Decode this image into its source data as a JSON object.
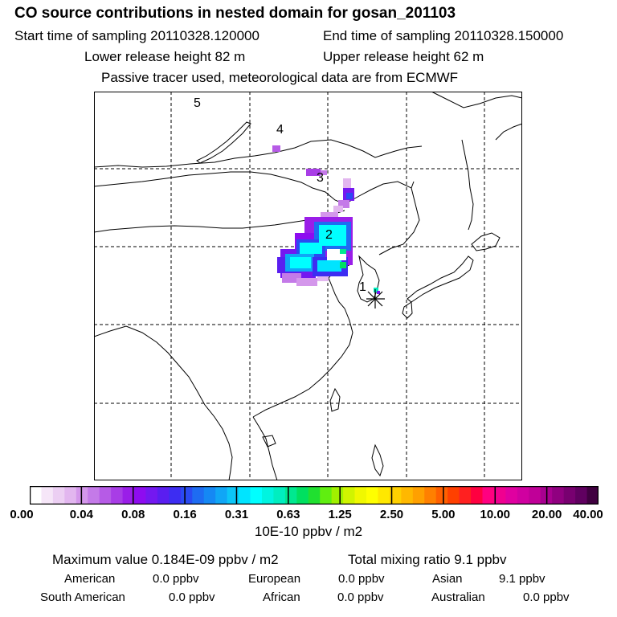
{
  "header": {
    "title": "CO  source contributions in nested domain for gosan_201103",
    "start_label": "Start time of sampling 20110328.120000",
    "end_label": "End time of sampling 20110328.150000",
    "lower_label": "Lower release height   82 m",
    "upper_label": "Upper release height   62 m",
    "tracer_label": "Passive tracer used, meteorological data are from ECMWF"
  },
  "chart_data": {
    "type": "heatmap",
    "title": "CO  source contributions in nested domain for gosan_201103",
    "colorbar_ticks": [
      "0.00",
      "0.04",
      "0.08",
      "0.16",
      "0.31",
      "0.63",
      "1.25",
      "2.50",
      "5.00",
      "10.00",
      "20.00",
      "40.00"
    ],
    "colorbar_colors": [
      "#ffffff",
      "#f6e6f8",
      "#eccff3",
      "#e2b6ef",
      "#d497eb",
      "#c47ae8",
      "#b65be6",
      "#a83de6",
      "#9a1ee8",
      "#8e0cf0",
      "#7418f0",
      "#5a1ef0",
      "#3d2df2",
      "#2a4af2",
      "#1e6cf2",
      "#1588f4",
      "#10a6f6",
      "#0cc6f8",
      "#00e4ff",
      "#00ffff",
      "#00f4e0",
      "#00eec0",
      "#00e890",
      "#00e060",
      "#20e030",
      "#60ee10",
      "#a0f000",
      "#d0f400",
      "#f0f800",
      "#ffff00",
      "#ffe800",
      "#ffd000",
      "#ffb800",
      "#ffa000",
      "#ff8000",
      "#ff6000",
      "#ff4000",
      "#ff2020",
      "#ff0040",
      "#ff0080",
      "#f00090",
      "#e000a0",
      "#d000a0",
      "#c00098",
      "#a80090",
      "#900080",
      "#780070",
      "#600060",
      "#400040"
    ],
    "unit": "10E-10 ppbv / m2",
    "markers": [
      "1",
      "2",
      "3",
      "4",
      "5"
    ],
    "receptor": "gosan"
  },
  "stats": {
    "max_label": "Maximum value  0.184E-09 ppbv / m2",
    "total_label": "Total mixing ratio       9.1 ppbv",
    "regions": [
      {
        "name": "American",
        "value": "0.0 ppbv"
      },
      {
        "name": "European",
        "value": "0.0 ppbv"
      },
      {
        "name": "Asian",
        "value": "9.1 ppbv"
      },
      {
        "name": "South American",
        "value": "0.0 ppbv"
      },
      {
        "name": "African",
        "value": "0.0 ppbv"
      },
      {
        "name": "Australian",
        "value": "0.0 ppbv"
      }
    ]
  }
}
